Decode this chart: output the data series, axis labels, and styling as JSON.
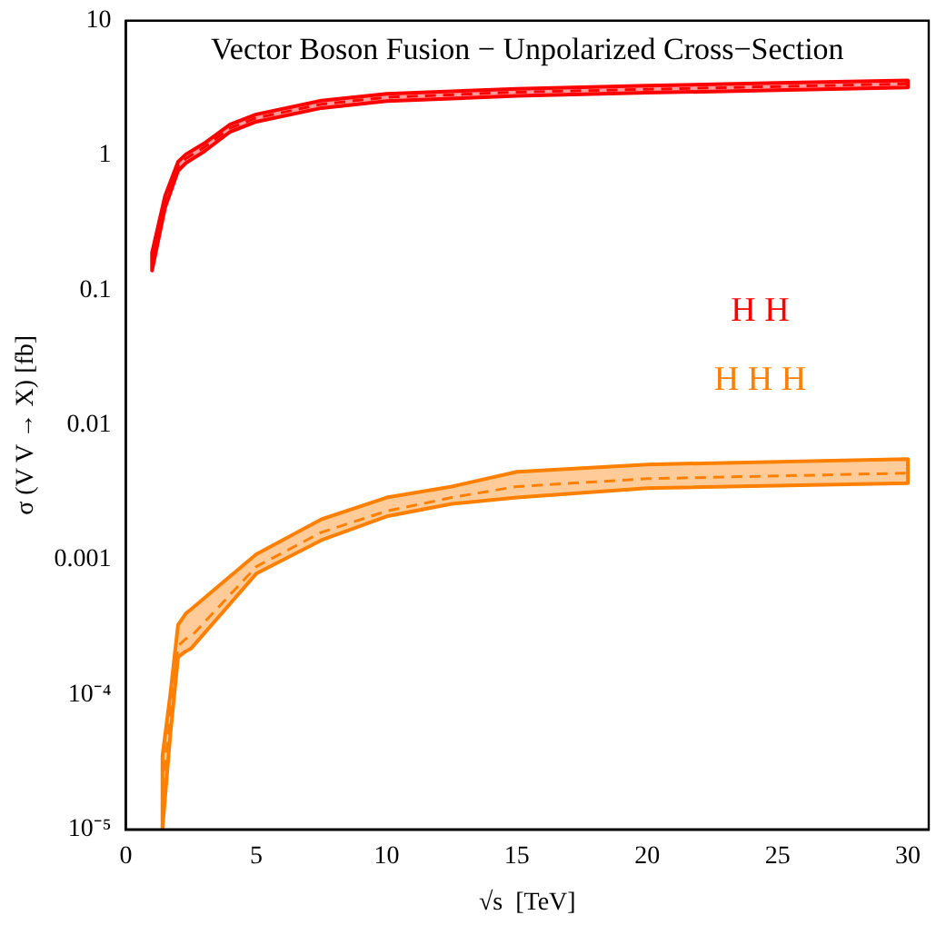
{
  "chart_data": {
    "type": "line",
    "title": "Vector Boson Fusion − Unpolarized Cross−Section",
    "xlabel": "√s  [TeV]",
    "ylabel": "σ (V V → X) [fb]",
    "log": "y",
    "grid": false,
    "legend": false,
    "line_style": "dashed",
    "marker": "none",
    "xlim": [
      0,
      30.8
    ],
    "xticks": [
      0,
      5,
      10,
      15,
      20,
      25,
      30
    ],
    "ylim": [
      1e-05,
      10
    ],
    "yticks": [
      {
        "value": 1e-05,
        "label": "10⁻⁵"
      },
      {
        "value": 0.0001,
        "label": "10⁻⁴"
      },
      0.001,
      0.01,
      0.1,
      1,
      10
    ],
    "series": [
      {
        "name": "H H",
        "color": "#ff0000",
        "x": [
          1,
          1.5,
          2,
          2.3,
          3,
          4,
          5,
          7.5,
          10,
          15,
          20,
          25,
          30
        ],
        "values": [
          0.16,
          0.45,
          0.83,
          0.95,
          1.15,
          1.6,
          1.9,
          2.4,
          2.7,
          2.95,
          3.1,
          3.25,
          3.4
        ],
        "lower": [
          0.14,
          0.41,
          0.77,
          0.88,
          1.07,
          1.5,
          1.78,
          2.25,
          2.53,
          2.77,
          2.92,
          3.05,
          3.2
        ],
        "upper": [
          0.19,
          0.5,
          0.9,
          1.02,
          1.23,
          1.7,
          2.02,
          2.55,
          2.87,
          3.13,
          3.3,
          3.45,
          3.6
        ]
      },
      {
        "name": "H H H",
        "color": "#ff8000",
        "x": [
          1.4,
          1.7,
          2,
          2.3,
          2.5,
          5,
          7.5,
          10,
          12.5,
          15,
          20,
          30
        ],
        "values": [
          2e-05,
          7e-05,
          0.00023,
          0.00026,
          0.00027,
          0.00089,
          0.0016,
          0.0023,
          0.0029,
          0.0035,
          0.004,
          0.0044
        ],
        "lower": [
          1e-05,
          5e-05,
          0.00019,
          0.00021,
          0.00022,
          0.00079,
          0.0014,
          0.0021,
          0.0026,
          0.0029,
          0.0034,
          0.0037
        ],
        "upper": [
          3.5e-05,
          0.0001,
          0.00033,
          0.0004,
          0.00043,
          0.0011,
          0.002,
          0.0029,
          0.0035,
          0.0045,
          0.0051,
          0.0056
        ]
      }
    ]
  }
}
